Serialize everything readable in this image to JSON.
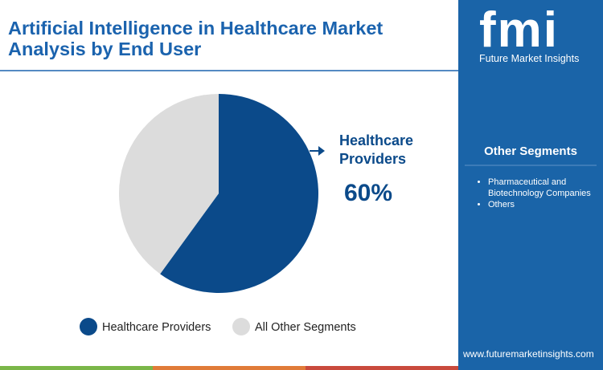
{
  "chart_data": {
    "type": "pie",
    "title": "Artificial Intelligence in Healthcare Market Analysis by End User",
    "categories": [
      "Healthcare Providers",
      "All Other Segments"
    ],
    "values": [
      60,
      40
    ],
    "value_labels": [
      "60%",
      null
    ],
    "colors": [
      "#0b4a8a",
      "#dcdcdc"
    ]
  },
  "logo": {
    "mark": "fmi",
    "name": "Future Market Insights"
  },
  "sidebar": {
    "title": "Other Segments",
    "items": [
      "Pharmaceutical and Biotechnology Companies",
      "Others"
    ]
  },
  "footer": {
    "url": "www.futuremarketinsights.com"
  }
}
